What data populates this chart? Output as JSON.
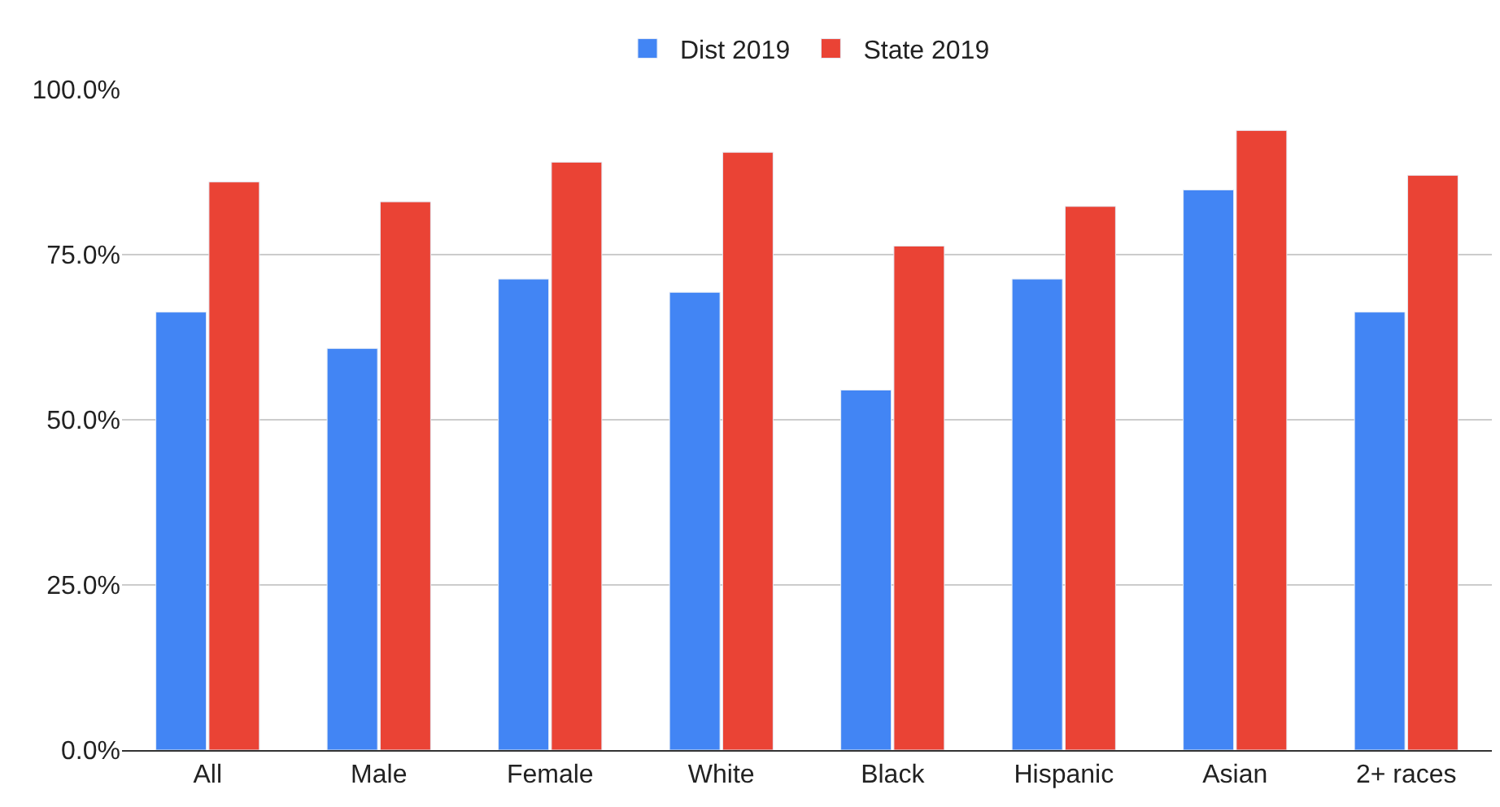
{
  "chart_data": {
    "type": "bar",
    "categories": [
      "All",
      "Male",
      "Female",
      "White",
      "Black",
      "Hispanic",
      "Asian",
      "2+ races"
    ],
    "series": [
      {
        "name": "Dist 2019",
        "color": "#4285f4",
        "values": [
          66.3,
          60.8,
          71.3,
          69.3,
          54.5,
          71.3,
          84.8,
          66.3
        ]
      },
      {
        "name": "State 2019",
        "color": "#ea4335",
        "values": [
          86,
          83,
          89,
          90.5,
          76.3,
          82.3,
          93.8,
          87
        ]
      }
    ],
    "ylim": [
      0,
      100
    ],
    "yticks": [
      {
        "value": 0,
        "label": "0.0%"
      },
      {
        "value": 25,
        "label": "25.0%"
      },
      {
        "value": 50,
        "label": "50.0%"
      },
      {
        "value": 75,
        "label": "75.0%"
      },
      {
        "value": 100,
        "label": "100.0%"
      }
    ],
    "grid": "y",
    "legend": "top"
  }
}
